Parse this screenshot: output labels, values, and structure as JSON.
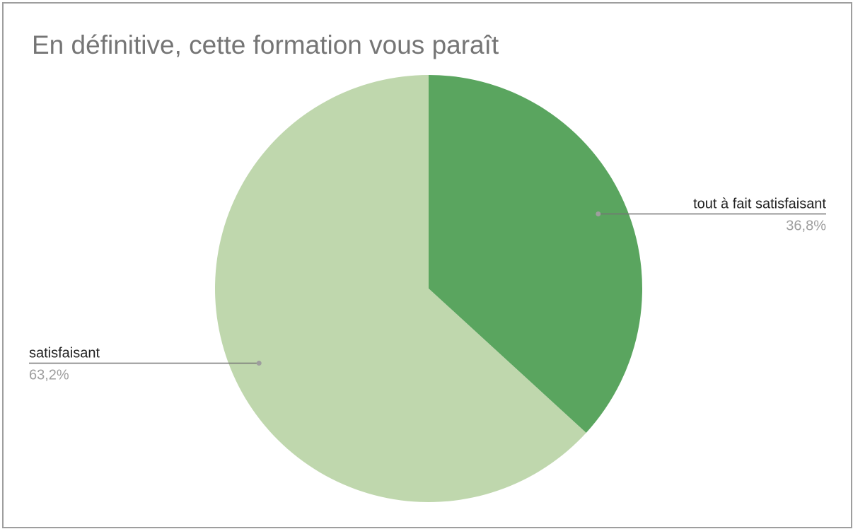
{
  "chart_data": {
    "type": "pie",
    "title": "En définitive, cette formation vous paraît",
    "slices": [
      {
        "name": "tout à fait satisfaisant",
        "value": 36.8,
        "label": "36,8%",
        "color": "#5aa55f"
      },
      {
        "name": "satisfaisant",
        "value": 63.2,
        "label": "63,2%",
        "color": "#bfd7ad"
      }
    ],
    "start_angle": "12 o'clock",
    "direction": "clockwise",
    "legend": "none",
    "labels": "outside with leader lines"
  }
}
